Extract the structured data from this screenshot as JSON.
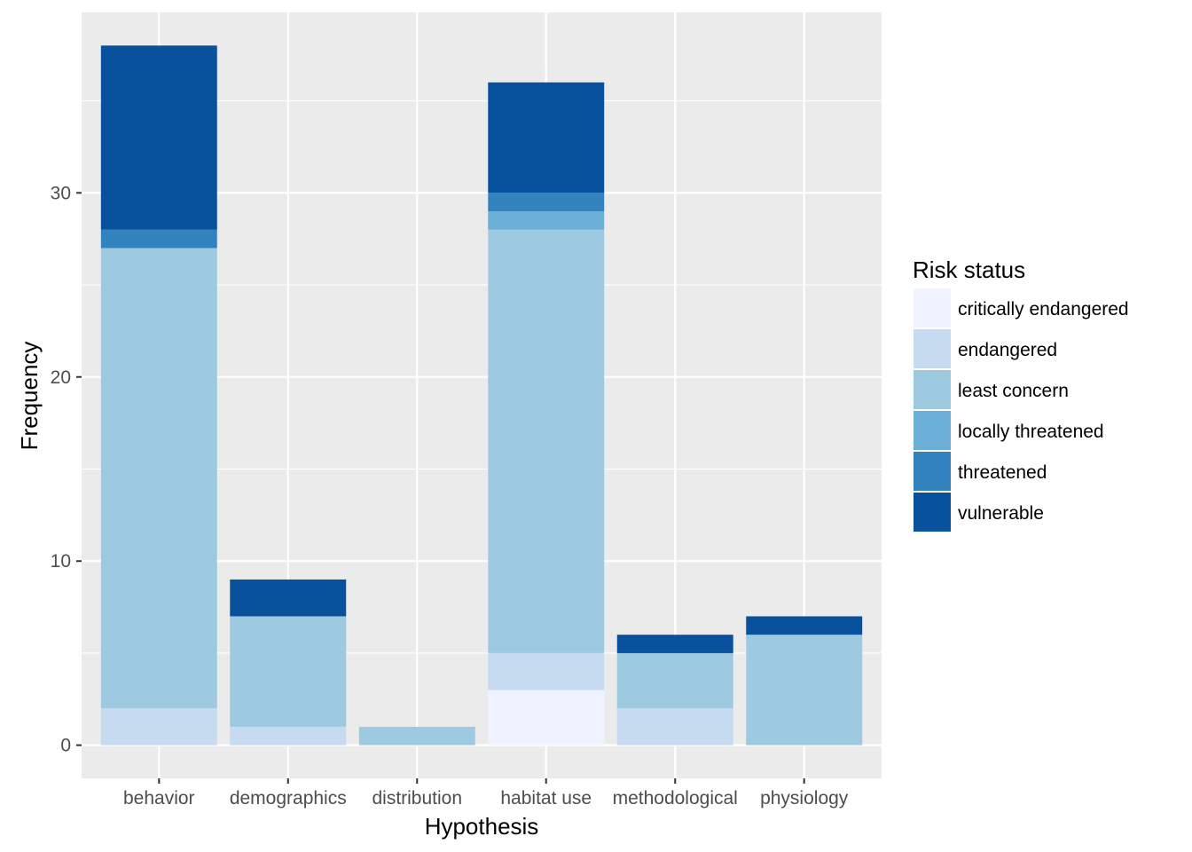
{
  "chart_data": {
    "type": "bar",
    "stacked": true,
    "xlabel": "Hypothesis",
    "ylabel": "Frequency",
    "categories": [
      "behavior",
      "demographics",
      "distribution",
      "habitat use",
      "methodological",
      "physiology"
    ],
    "ylim": [
      -1.8,
      39.8
    ],
    "yticks": [
      0,
      10,
      20,
      30
    ],
    "grid": true,
    "legend": {
      "title": "Risk status",
      "placement": "right"
    },
    "series": [
      {
        "name": "critically endangered",
        "color": "#eff3ff",
        "values": [
          0,
          0,
          0,
          3,
          0,
          0
        ]
      },
      {
        "name": "endangered",
        "color": "#c6dbef",
        "values": [
          2,
          1,
          0,
          2,
          2,
          0
        ]
      },
      {
        "name": "least concern",
        "color": "#9ecae1",
        "values": [
          25,
          6,
          1,
          23,
          3,
          6
        ]
      },
      {
        "name": "locally threatened",
        "color": "#6baed6",
        "values": [
          0,
          0,
          0,
          1,
          0,
          0
        ]
      },
      {
        "name": "threatened",
        "color": "#3182bd",
        "values": [
          1,
          0,
          0,
          1,
          0,
          0
        ]
      },
      {
        "name": "vulnerable",
        "color": "#08519c",
        "values": [
          10,
          2,
          0,
          6,
          1,
          1
        ]
      }
    ]
  }
}
